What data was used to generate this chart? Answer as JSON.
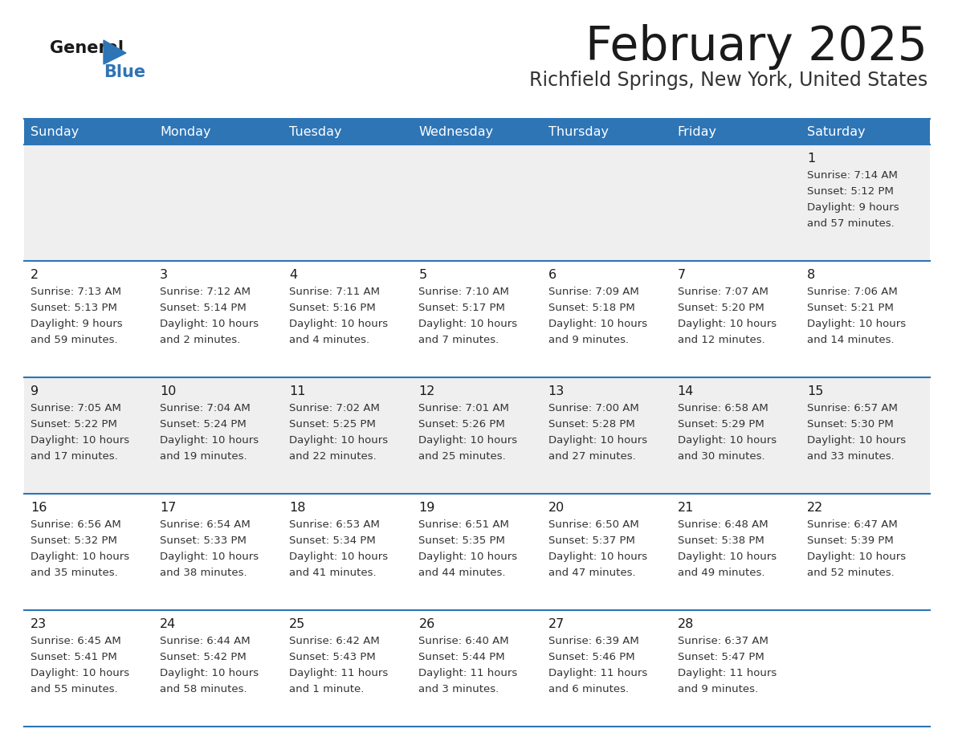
{
  "title": "February 2025",
  "subtitle": "Richfield Springs, New York, United States",
  "header_bg": "#2E75B6",
  "header_text_color": "#FFFFFF",
  "cell_bg_alt": "#EFEFEF",
  "cell_bg_white": "#FFFFFF",
  "text_color": "#333333",
  "day_num_color": "#1a1a1a",
  "separator_color": "#2E75B6",
  "day_headers": [
    "Sunday",
    "Monday",
    "Tuesday",
    "Wednesday",
    "Thursday",
    "Friday",
    "Saturday"
  ],
  "row_bg": [
    "alt",
    "white",
    "alt",
    "white",
    "white"
  ],
  "calendar_data": [
    [
      {
        "day": null,
        "sunrise": null,
        "sunset": null,
        "daylight": null
      },
      {
        "day": null,
        "sunrise": null,
        "sunset": null,
        "daylight": null
      },
      {
        "day": null,
        "sunrise": null,
        "sunset": null,
        "daylight": null
      },
      {
        "day": null,
        "sunrise": null,
        "sunset": null,
        "daylight": null
      },
      {
        "day": null,
        "sunrise": null,
        "sunset": null,
        "daylight": null
      },
      {
        "day": null,
        "sunrise": null,
        "sunset": null,
        "daylight": null
      },
      {
        "day": 1,
        "sunrise": "7:14 AM",
        "sunset": "5:12 PM",
        "daylight_line1": "Daylight: 9 hours",
        "daylight_line2": "and 57 minutes."
      }
    ],
    [
      {
        "day": 2,
        "sunrise": "7:13 AM",
        "sunset": "5:13 PM",
        "daylight_line1": "Daylight: 9 hours",
        "daylight_line2": "and 59 minutes."
      },
      {
        "day": 3,
        "sunrise": "7:12 AM",
        "sunset": "5:14 PM",
        "daylight_line1": "Daylight: 10 hours",
        "daylight_line2": "and 2 minutes."
      },
      {
        "day": 4,
        "sunrise": "7:11 AM",
        "sunset": "5:16 PM",
        "daylight_line1": "Daylight: 10 hours",
        "daylight_line2": "and 4 minutes."
      },
      {
        "day": 5,
        "sunrise": "7:10 AM",
        "sunset": "5:17 PM",
        "daylight_line1": "Daylight: 10 hours",
        "daylight_line2": "and 7 minutes."
      },
      {
        "day": 6,
        "sunrise": "7:09 AM",
        "sunset": "5:18 PM",
        "daylight_line1": "Daylight: 10 hours",
        "daylight_line2": "and 9 minutes."
      },
      {
        "day": 7,
        "sunrise": "7:07 AM",
        "sunset": "5:20 PM",
        "daylight_line1": "Daylight: 10 hours",
        "daylight_line2": "and 12 minutes."
      },
      {
        "day": 8,
        "sunrise": "7:06 AM",
        "sunset": "5:21 PM",
        "daylight_line1": "Daylight: 10 hours",
        "daylight_line2": "and 14 minutes."
      }
    ],
    [
      {
        "day": 9,
        "sunrise": "7:05 AM",
        "sunset": "5:22 PM",
        "daylight_line1": "Daylight: 10 hours",
        "daylight_line2": "and 17 minutes."
      },
      {
        "day": 10,
        "sunrise": "7:04 AM",
        "sunset": "5:24 PM",
        "daylight_line1": "Daylight: 10 hours",
        "daylight_line2": "and 19 minutes."
      },
      {
        "day": 11,
        "sunrise": "7:02 AM",
        "sunset": "5:25 PM",
        "daylight_line1": "Daylight: 10 hours",
        "daylight_line2": "and 22 minutes."
      },
      {
        "day": 12,
        "sunrise": "7:01 AM",
        "sunset": "5:26 PM",
        "daylight_line1": "Daylight: 10 hours",
        "daylight_line2": "and 25 minutes."
      },
      {
        "day": 13,
        "sunrise": "7:00 AM",
        "sunset": "5:28 PM",
        "daylight_line1": "Daylight: 10 hours",
        "daylight_line2": "and 27 minutes."
      },
      {
        "day": 14,
        "sunrise": "6:58 AM",
        "sunset": "5:29 PM",
        "daylight_line1": "Daylight: 10 hours",
        "daylight_line2": "and 30 minutes."
      },
      {
        "day": 15,
        "sunrise": "6:57 AM",
        "sunset": "5:30 PM",
        "daylight_line1": "Daylight: 10 hours",
        "daylight_line2": "and 33 minutes."
      }
    ],
    [
      {
        "day": 16,
        "sunrise": "6:56 AM",
        "sunset": "5:32 PM",
        "daylight_line1": "Daylight: 10 hours",
        "daylight_line2": "and 35 minutes."
      },
      {
        "day": 17,
        "sunrise": "6:54 AM",
        "sunset": "5:33 PM",
        "daylight_line1": "Daylight: 10 hours",
        "daylight_line2": "and 38 minutes."
      },
      {
        "day": 18,
        "sunrise": "6:53 AM",
        "sunset": "5:34 PM",
        "daylight_line1": "Daylight: 10 hours",
        "daylight_line2": "and 41 minutes."
      },
      {
        "day": 19,
        "sunrise": "6:51 AM",
        "sunset": "5:35 PM",
        "daylight_line1": "Daylight: 10 hours",
        "daylight_line2": "and 44 minutes."
      },
      {
        "day": 20,
        "sunrise": "6:50 AM",
        "sunset": "5:37 PM",
        "daylight_line1": "Daylight: 10 hours",
        "daylight_line2": "and 47 minutes."
      },
      {
        "day": 21,
        "sunrise": "6:48 AM",
        "sunset": "5:38 PM",
        "daylight_line1": "Daylight: 10 hours",
        "daylight_line2": "and 49 minutes."
      },
      {
        "day": 22,
        "sunrise": "6:47 AM",
        "sunset": "5:39 PM",
        "daylight_line1": "Daylight: 10 hours",
        "daylight_line2": "and 52 minutes."
      }
    ],
    [
      {
        "day": 23,
        "sunrise": "6:45 AM",
        "sunset": "5:41 PM",
        "daylight_line1": "Daylight: 10 hours",
        "daylight_line2": "and 55 minutes."
      },
      {
        "day": 24,
        "sunrise": "6:44 AM",
        "sunset": "5:42 PM",
        "daylight_line1": "Daylight: 10 hours",
        "daylight_line2": "and 58 minutes."
      },
      {
        "day": 25,
        "sunrise": "6:42 AM",
        "sunset": "5:43 PM",
        "daylight_line1": "Daylight: 11 hours",
        "daylight_line2": "and 1 minute."
      },
      {
        "day": 26,
        "sunrise": "6:40 AM",
        "sunset": "5:44 PM",
        "daylight_line1": "Daylight: 11 hours",
        "daylight_line2": "and 3 minutes."
      },
      {
        "day": 27,
        "sunrise": "6:39 AM",
        "sunset": "5:46 PM",
        "daylight_line1": "Daylight: 11 hours",
        "daylight_line2": "and 6 minutes."
      },
      {
        "day": 28,
        "sunrise": "6:37 AM",
        "sunset": "5:47 PM",
        "daylight_line1": "Daylight: 11 hours",
        "daylight_line2": "and 9 minutes."
      },
      {
        "day": null,
        "sunrise": null,
        "sunset": null,
        "daylight_line1": null,
        "daylight_line2": null
      }
    ]
  ]
}
